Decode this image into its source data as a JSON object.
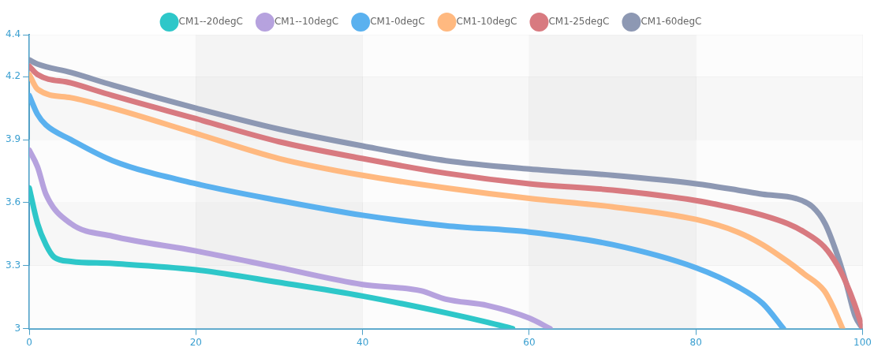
{
  "chart_data": {
    "type": "line",
    "xlim": [
      0,
      100
    ],
    "xticks": [
      0,
      20,
      40,
      60,
      80,
      100
    ],
    "ylim": [
      3,
      4.4
    ],
    "yticks": [
      3,
      3.3,
      3.6,
      3.9,
      4.2,
      4.4
    ],
    "grid": true,
    "legend": "top",
    "marker": "none",
    "line_style": "solid",
    "series": [
      {
        "name": "CM1--20degC",
        "color": "#2ec7c9",
        "x": [
          0,
          1,
          2,
          3,
          5,
          10,
          20,
          30,
          40,
          50,
          55,
          58
        ],
        "values": [
          3.67,
          3.5,
          3.4,
          3.34,
          3.32,
          3.31,
          3.28,
          3.22,
          3.155,
          3.075,
          3.03,
          3.0
        ]
      },
      {
        "name": "CM1--10degC",
        "color": "#b6a2de",
        "x": [
          0,
          1,
          2,
          5,
          10,
          20,
          30,
          40,
          47,
          50,
          55,
          60,
          62.5
        ],
        "values": [
          3.85,
          3.77,
          3.64,
          3.5,
          3.44,
          3.37,
          3.29,
          3.21,
          3.18,
          3.14,
          3.11,
          3.05,
          3.0
        ]
      },
      {
        "name": "CM1-0degC",
        "color": "#5ab1ef",
        "x": [
          0,
          1,
          2,
          5,
          10,
          20,
          30,
          40,
          50,
          60,
          70,
          80,
          85,
          88,
          90.5
        ],
        "values": [
          4.11,
          4.02,
          3.97,
          3.9,
          3.8,
          3.69,
          3.61,
          3.54,
          3.49,
          3.46,
          3.4,
          3.29,
          3.2,
          3.12,
          3.0
        ]
      },
      {
        "name": "CM1-10degC",
        "color": "#ffb980",
        "x": [
          0,
          1,
          5,
          10,
          20,
          30,
          40,
          50,
          60,
          70,
          80,
          85,
          88,
          91,
          93,
          95.4,
          96.5,
          97.6
        ],
        "values": [
          4.21,
          4.14,
          4.1,
          4.05,
          3.93,
          3.81,
          3.73,
          3.67,
          3.62,
          3.58,
          3.52,
          3.46,
          3.4,
          3.32,
          3.26,
          3.18,
          3.1,
          3.0
        ]
      },
      {
        "name": "CM1-25degC",
        "color": "#d87a80",
        "x": [
          0,
          1,
          5,
          10,
          20,
          30,
          40,
          50,
          60,
          70,
          80,
          85,
          88,
          91,
          93,
          95.4,
          97,
          98,
          99,
          100
        ],
        "values": [
          4.25,
          4.21,
          4.17,
          4.11,
          4.0,
          3.89,
          3.81,
          3.74,
          3.69,
          3.66,
          3.61,
          3.57,
          3.54,
          3.5,
          3.46,
          3.39,
          3.3,
          3.22,
          3.12,
          3.0
        ]
      },
      {
        "name": "CM1-60degC",
        "color": "#8d98b3",
        "x": [
          0,
          1,
          5,
          10,
          20,
          30,
          40,
          50,
          60,
          70,
          80,
          85,
          88,
          92,
          94,
          95.5,
          96.8,
          98,
          99.1,
          100
        ],
        "values": [
          4.28,
          4.26,
          4.22,
          4.16,
          4.05,
          3.95,
          3.87,
          3.8,
          3.76,
          3.73,
          3.69,
          3.66,
          3.64,
          3.62,
          3.58,
          3.5,
          3.37,
          3.22,
          3.06,
          3.0
        ]
      }
    ]
  }
}
